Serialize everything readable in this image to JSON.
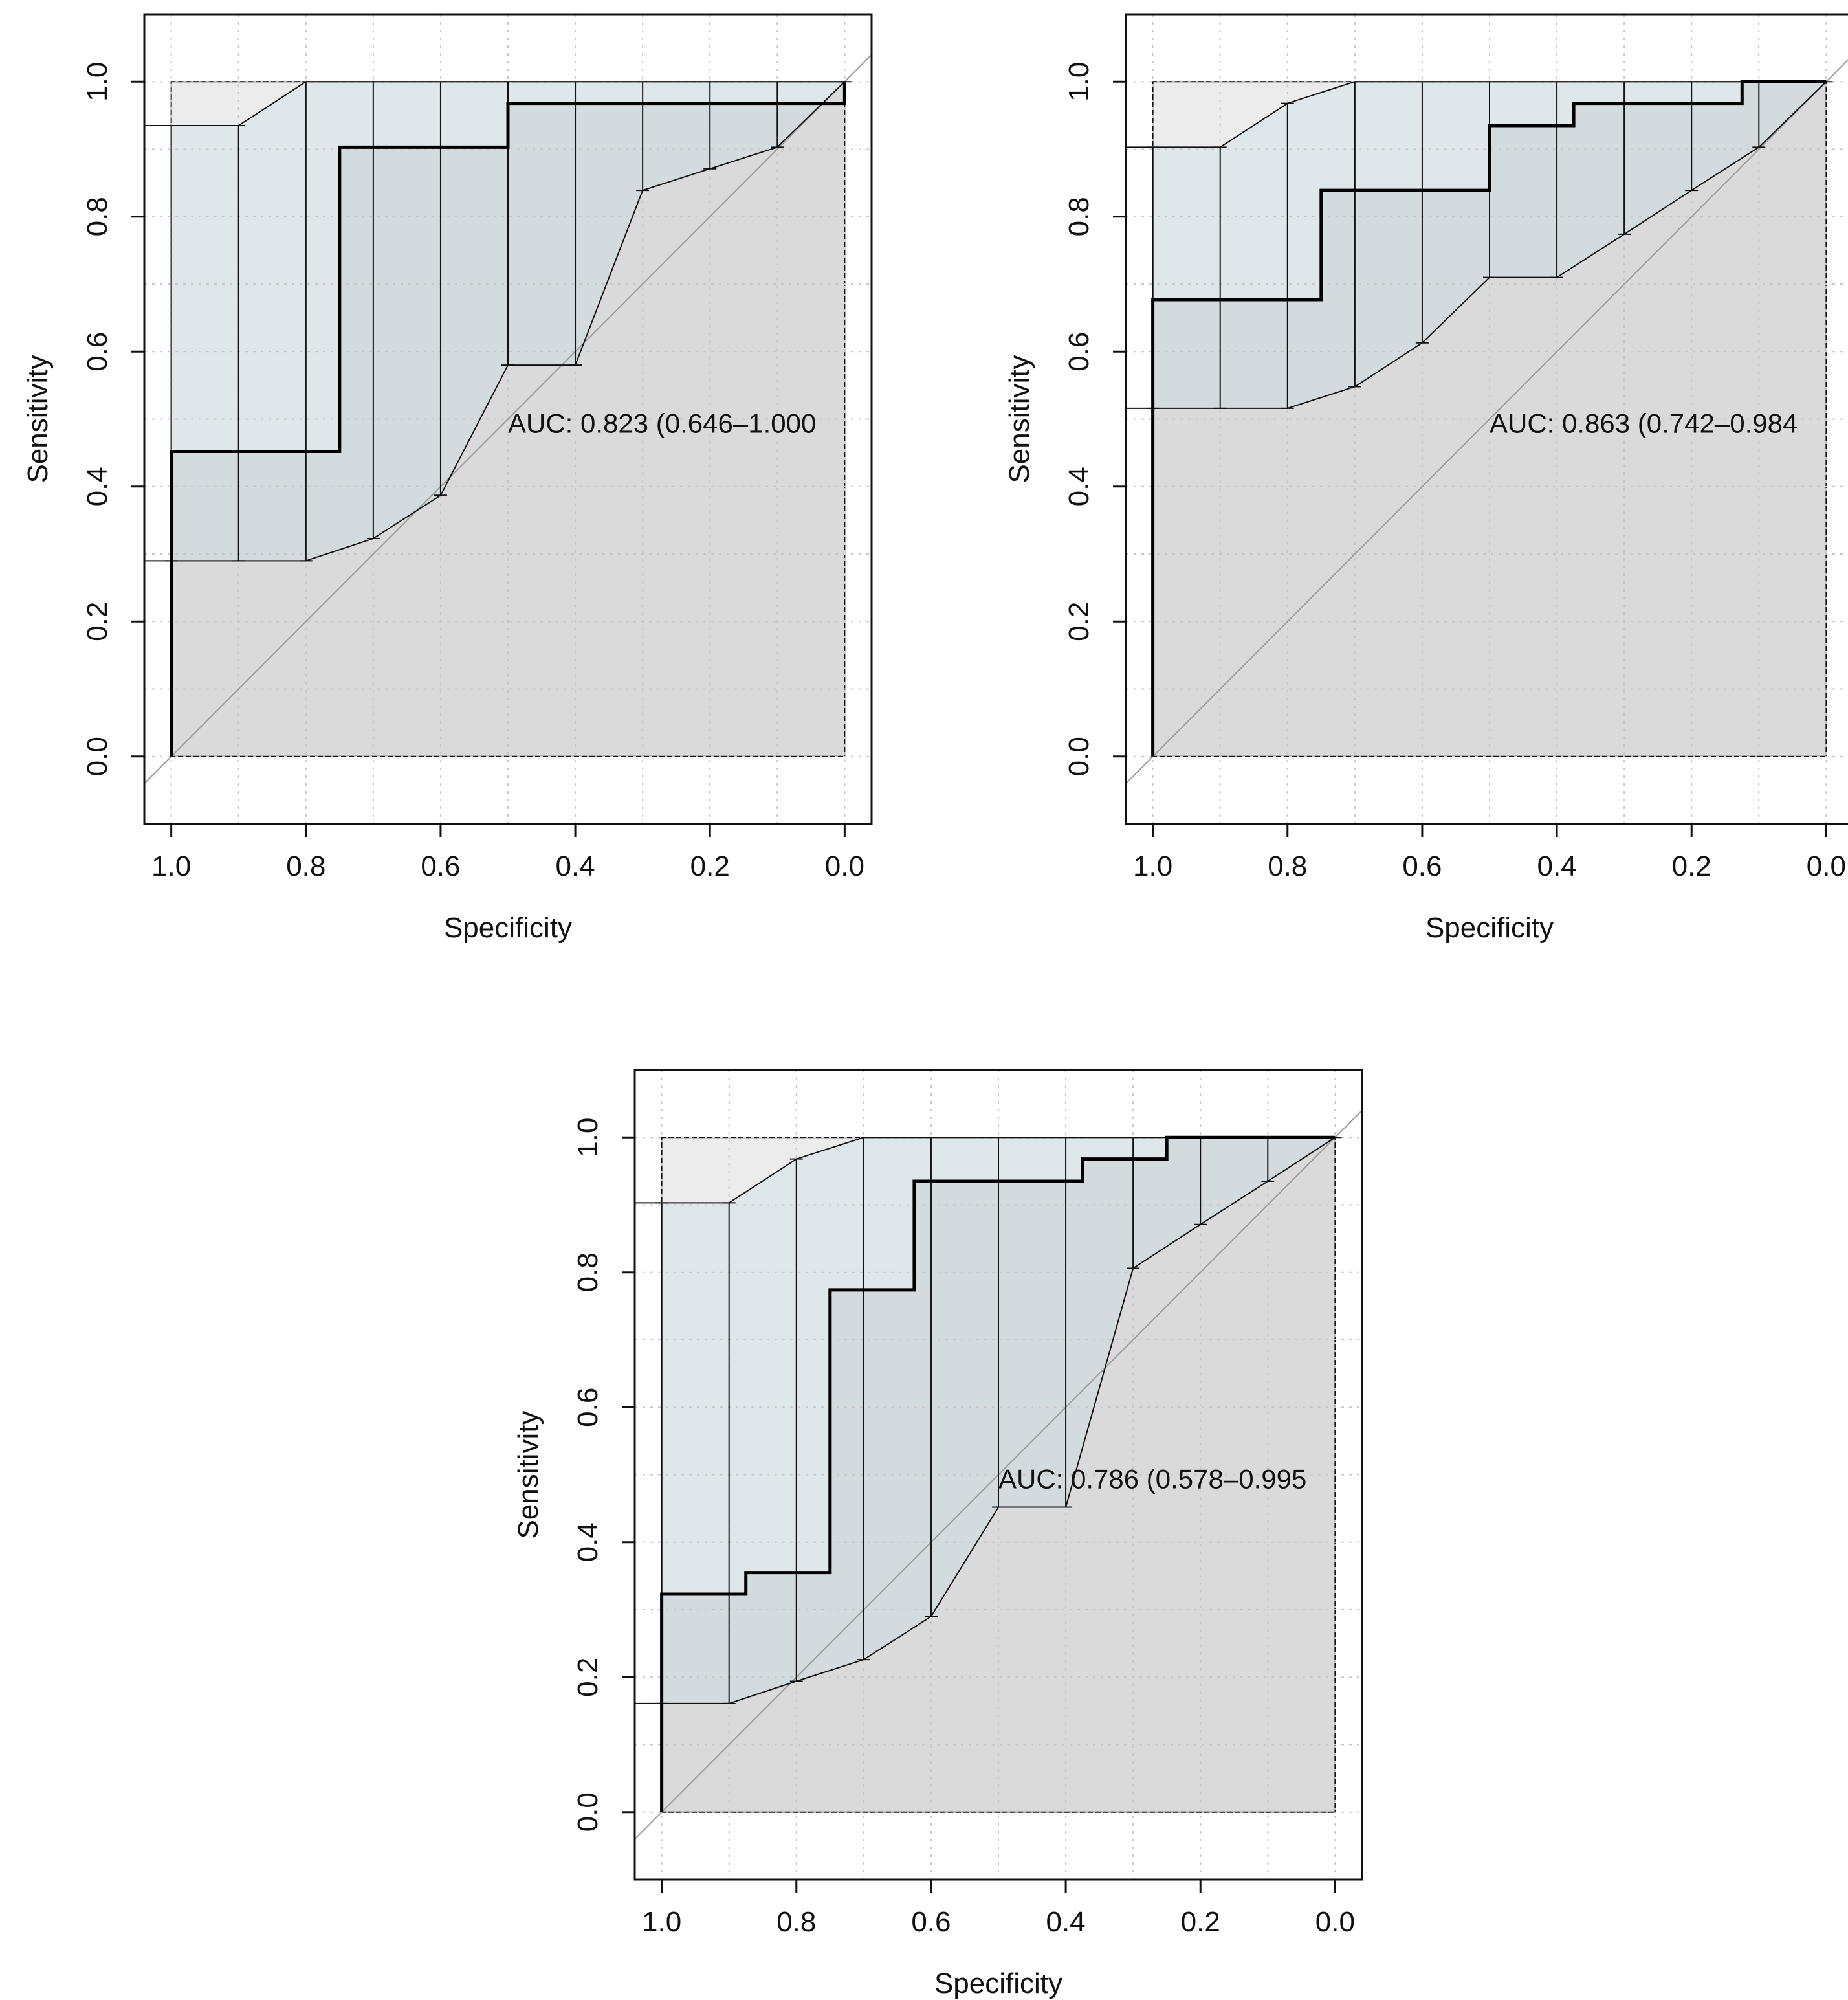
{
  "chart_data": [
    {
      "type": "line",
      "title": "",
      "xlabel": "Specificity",
      "ylabel": "Sensitivity",
      "xlim": [
        1.04,
        -0.04
      ],
      "ylim": [
        -0.1,
        1.1
      ],
      "x_ticks": [
        1.0,
        0.8,
        0.6,
        0.4,
        0.2,
        0.0
      ],
      "x_tick_labels": [
        "1.0",
        "0.8",
        "0.6",
        "0.4",
        "0.2",
        "0.0"
      ],
      "y_ticks": [
        0.0,
        0.2,
        0.4,
        0.6,
        0.8,
        1.0
      ],
      "y_tick_labels": [
        "0.0",
        "0.2",
        "0.4",
        "0.6",
        "0.8",
        "1.0"
      ],
      "grid": true,
      "annotation": "AUC: 0.823 (0.646–1.000",
      "roc_curve": {
        "x": [
          1.0,
          1.0,
          0.75,
          0.75,
          0.5,
          0.5,
          0.0,
          0.0
        ],
        "y": [
          0.0,
          0.452,
          0.452,
          0.903,
          0.903,
          0.968,
          0.968,
          1.0
        ]
      },
      "ci_band": {
        "specificity": [
          1.0,
          0.9,
          0.8,
          0.7,
          0.6,
          0.5,
          0.4,
          0.3,
          0.2,
          0.1,
          0.0
        ],
        "upper": [
          0.935,
          0.935,
          1.0,
          1.0,
          1.0,
          1.0,
          1.0,
          1.0,
          1.0,
          1.0,
          1.0
        ],
        "lower": [
          0.29,
          0.29,
          0.29,
          0.323,
          0.387,
          0.58,
          0.58,
          0.839,
          0.871,
          0.903,
          1.0
        ]
      }
    },
    {
      "type": "line",
      "title": "",
      "xlabel": "Specificity",
      "ylabel": "Sensitivity",
      "xlim": [
        1.04,
        -0.04
      ],
      "ylim": [
        -0.1,
        1.1
      ],
      "x_ticks": [
        1.0,
        0.8,
        0.6,
        0.4,
        0.2,
        0.0
      ],
      "x_tick_labels": [
        "1.0",
        "0.8",
        "0.6",
        "0.4",
        "0.2",
        "0.0"
      ],
      "y_ticks": [
        0.0,
        0.2,
        0.4,
        0.6,
        0.8,
        1.0
      ],
      "y_tick_labels": [
        "0.0",
        "0.2",
        "0.4",
        "0.6",
        "0.8",
        "1.0"
      ],
      "grid": true,
      "annotation": "AUC: 0.863 (0.742–0.984",
      "roc_curve": {
        "x": [
          1.0,
          1.0,
          0.75,
          0.75,
          0.5,
          0.5,
          0.375,
          0.375,
          0.125,
          0.125,
          0.0
        ],
        "y": [
          0.0,
          0.677,
          0.677,
          0.839,
          0.839,
          0.935,
          0.935,
          0.968,
          0.968,
          1.0,
          1.0
        ]
      },
      "ci_band": {
        "specificity": [
          1.0,
          0.9,
          0.8,
          0.7,
          0.6,
          0.5,
          0.4,
          0.3,
          0.2,
          0.1,
          0.0
        ],
        "upper": [
          0.903,
          0.903,
          0.968,
          1.0,
          1.0,
          1.0,
          1.0,
          1.0,
          1.0,
          1.0,
          1.0
        ],
        "lower": [
          0.516,
          0.516,
          0.516,
          0.548,
          0.613,
          0.71,
          0.71,
          0.774,
          0.839,
          0.903,
          1.0
        ]
      }
    },
    {
      "type": "line",
      "title": "",
      "xlabel": "Specificity",
      "ylabel": "Sensitivity",
      "xlim": [
        1.04,
        -0.04
      ],
      "ylim": [
        -0.1,
        1.1
      ],
      "x_ticks": [
        1.0,
        0.8,
        0.6,
        0.4,
        0.2,
        0.0
      ],
      "x_tick_labels": [
        "1.0",
        "0.8",
        "0.6",
        "0.4",
        "0.2",
        "0.0"
      ],
      "y_ticks": [
        0.0,
        0.2,
        0.4,
        0.6,
        0.8,
        1.0
      ],
      "y_tick_labels": [
        "0.0",
        "0.2",
        "0.4",
        "0.6",
        "0.8",
        "1.0"
      ],
      "grid": true,
      "annotation": "AUC: 0.786 (0.578–0.995",
      "roc_curve": {
        "x": [
          1.0,
          1.0,
          0.875,
          0.875,
          0.75,
          0.75,
          0.625,
          0.625,
          0.375,
          0.375,
          0.25,
          0.25,
          0.0
        ],
        "y": [
          0.0,
          0.323,
          0.323,
          0.355,
          0.355,
          0.774,
          0.774,
          0.935,
          0.935,
          0.968,
          0.968,
          1.0,
          1.0
        ]
      },
      "ci_band": {
        "specificity": [
          1.0,
          0.9,
          0.8,
          0.7,
          0.6,
          0.5,
          0.4,
          0.3,
          0.2,
          0.1,
          0.0
        ],
        "upper": [
          0.903,
          0.903,
          0.968,
          1.0,
          1.0,
          1.0,
          1.0,
          1.0,
          1.0,
          1.0,
          1.0
        ],
        "lower": [
          0.161,
          0.161,
          0.194,
          0.226,
          0.29,
          0.452,
          0.452,
          0.806,
          0.871,
          0.935,
          1.0
        ]
      }
    }
  ]
}
